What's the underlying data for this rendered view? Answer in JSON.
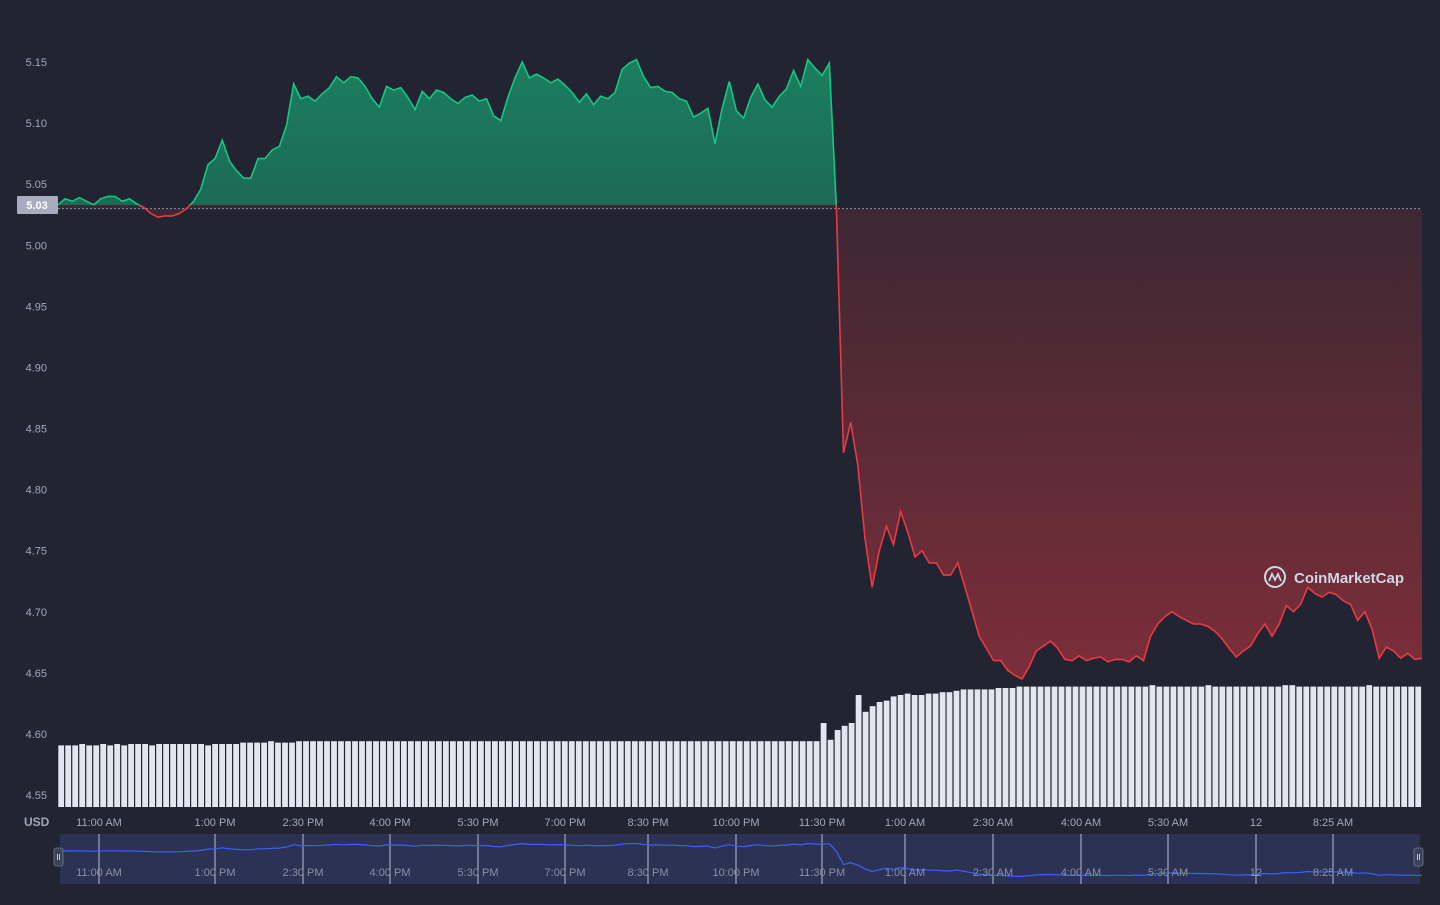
{
  "chart_data": {
    "type": "area",
    "currency_label": "USD",
    "baseline": 5.03,
    "baseline_label": "5.03",
    "colors": {
      "up": "#16c784",
      "down": "#ea3943",
      "volume": "#e3e6ee",
      "navigator_line": "#3861fb",
      "background": "#222531",
      "axis_text": "#a1a7bb"
    },
    "ylim": [
      4.53,
      5.17
    ],
    "y_ticks": [
      "5.15",
      "5.10",
      "5.05",
      "5.00",
      "4.95",
      "4.90",
      "4.85",
      "4.80",
      "4.75",
      "4.70",
      "4.65",
      "4.60",
      "4.55"
    ],
    "x_ticks": [
      "11:00 AM",
      "1:00 PM",
      "2:30 PM",
      "4:00 PM",
      "5:30 PM",
      "7:00 PM",
      "8:30 PM",
      "10:00 PM",
      "11:30 PM",
      "1:00 AM",
      "2:30 AM",
      "4:00 AM",
      "5:30 AM",
      "12",
      "8:25 AM"
    ],
    "price_series": {
      "name": "Price",
      "values": [
        5.033,
        5.038,
        5.036,
        5.039,
        5.036,
        5.033,
        5.038,
        5.04,
        5.04,
        5.036,
        5.038,
        5.034,
        5.031,
        5.026,
        5.023,
        5.024,
        5.024,
        5.026,
        5.03,
        5.036,
        5.046,
        5.066,
        5.071,
        5.086,
        5.069,
        5.061,
        5.055,
        5.055,
        5.071,
        5.071,
        5.078,
        5.081,
        5.098,
        5.132,
        5.12,
        5.122,
        5.118,
        5.124,
        5.129,
        5.138,
        5.133,
        5.138,
        5.137,
        5.13,
        5.12,
        5.113,
        5.13,
        5.127,
        5.129,
        5.121,
        5.111,
        5.126,
        5.12,
        5.127,
        5.125,
        5.12,
        5.116,
        5.121,
        5.123,
        5.118,
        5.12,
        5.106,
        5.102,
        5.121,
        5.137,
        5.15,
        5.137,
        5.14,
        5.137,
        5.133,
        5.136,
        5.131,
        5.125,
        5.117,
        5.124,
        5.115,
        5.122,
        5.12,
        5.125,
        5.144,
        5.149,
        5.152,
        5.138,
        5.129,
        5.13,
        5.126,
        5.125,
        5.12,
        5.118,
        5.105,
        5.108,
        5.112,
        5.083,
        5.112,
        5.134,
        5.11,
        5.104,
        5.121,
        5.132,
        5.119,
        5.113,
        5.122,
        5.128,
        5.143,
        5.13,
        5.152,
        5.145,
        5.139,
        5.149,
        5.03,
        4.83,
        4.855,
        4.82,
        4.76,
        4.72,
        4.75,
        4.77,
        4.755,
        4.782,
        4.765,
        4.745,
        4.75,
        4.74,
        4.74,
        4.73,
        4.73,
        4.74,
        4.72,
        4.7,
        4.68,
        4.67,
        4.66,
        4.66,
        4.652,
        4.648,
        4.645,
        4.655,
        4.668,
        4.672,
        4.676,
        4.67,
        4.661,
        4.66,
        4.664,
        4.66,
        4.662,
        4.663,
        4.659,
        4.661,
        4.661,
        4.659,
        4.664,
        4.66,
        4.68,
        4.69,
        4.696,
        4.7,
        4.696,
        4.693,
        4.69,
        4.69,
        4.688,
        4.684,
        4.678,
        4.67,
        4.663,
        4.668,
        4.672,
        4.682,
        4.69,
        4.68,
        4.69,
        4.705,
        4.7,
        4.706,
        4.72,
        4.715,
        4.712,
        4.716,
        4.714,
        4.709,
        4.706,
        4.693,
        4.7,
        4.686,
        4.662,
        4.671,
        4.668,
        4.662,
        4.666,
        4.661,
        4.662
      ]
    },
    "volume_series": {
      "name": "Volume",
      "values": [
        0.44,
        0.44,
        0.44,
        0.45,
        0.44,
        0.44,
        0.45,
        0.44,
        0.45,
        0.44,
        0.45,
        0.45,
        0.45,
        0.44,
        0.45,
        0.45,
        0.45,
        0.45,
        0.45,
        0.45,
        0.45,
        0.44,
        0.45,
        0.45,
        0.45,
        0.45,
        0.46,
        0.46,
        0.46,
        0.46,
        0.47,
        0.46,
        0.46,
        0.46,
        0.47,
        0.47,
        0.47,
        0.47,
        0.47,
        0.47,
        0.47,
        0.47,
        0.47,
        0.47,
        0.47,
        0.47,
        0.47,
        0.47,
        0.47,
        0.47,
        0.47,
        0.47,
        0.47,
        0.47,
        0.47,
        0.47,
        0.47,
        0.47,
        0.47,
        0.47,
        0.47,
        0.47,
        0.47,
        0.47,
        0.47,
        0.47,
        0.47,
        0.47,
        0.47,
        0.47,
        0.47,
        0.47,
        0.47,
        0.47,
        0.47,
        0.47,
        0.47,
        0.47,
        0.47,
        0.47,
        0.47,
        0.47,
        0.47,
        0.47,
        0.47,
        0.47,
        0.47,
        0.47,
        0.47,
        0.47,
        0.47,
        0.47,
        0.47,
        0.47,
        0.47,
        0.47,
        0.47,
        0.47,
        0.47,
        0.47,
        0.47,
        0.47,
        0.47,
        0.47,
        0.47,
        0.47,
        0.47,
        0.47,
        0.47,
        0.6,
        0.48,
        0.55,
        0.58,
        0.6,
        0.8,
        0.68,
        0.72,
        0.75,
        0.76,
        0.79,
        0.8,
        0.81,
        0.8,
        0.8,
        0.81,
        0.81,
        0.82,
        0.82,
        0.83,
        0.84,
        0.84,
        0.84,
        0.84,
        0.84,
        0.85,
        0.85,
        0.85,
        0.86,
        0.86,
        0.86,
        0.86,
        0.86,
        0.86,
        0.86,
        0.86,
        0.86,
        0.86,
        0.86,
        0.86,
        0.86,
        0.86,
        0.86,
        0.86,
        0.86,
        0.86,
        0.86,
        0.87,
        0.86,
        0.86,
        0.86,
        0.86,
        0.86,
        0.86,
        0.86,
        0.87,
        0.86,
        0.86,
        0.86,
        0.86,
        0.86,
        0.86,
        0.86,
        0.86,
        0.86,
        0.86,
        0.87,
        0.87,
        0.86,
        0.86,
        0.86,
        0.86,
        0.86,
        0.86,
        0.86,
        0.86,
        0.86,
        0.86,
        0.87,
        0.86,
        0.86,
        0.86,
        0.86,
        0.86,
        0.86,
        0.86
      ]
    },
    "grid": false,
    "legend": "none"
  },
  "navigator": {
    "x_ticks": [
      "11:00 AM",
      "1:00 PM",
      "2:30 PM",
      "4:00 PM",
      "5:30 PM",
      "7:00 PM",
      "8:30 PM",
      "10:00 PM",
      "11:30 PM",
      "1:00 AM",
      "2:30 AM",
      "4:00 AM",
      "5:30 AM",
      "12",
      "8:25 AM"
    ],
    "left_handle_icon": "drag-handle-icon",
    "right_handle_icon": "drag-handle-icon"
  },
  "watermark": {
    "text": "CoinMarketCap",
    "logo_icon": "coinmarketcap-logo-icon"
  }
}
